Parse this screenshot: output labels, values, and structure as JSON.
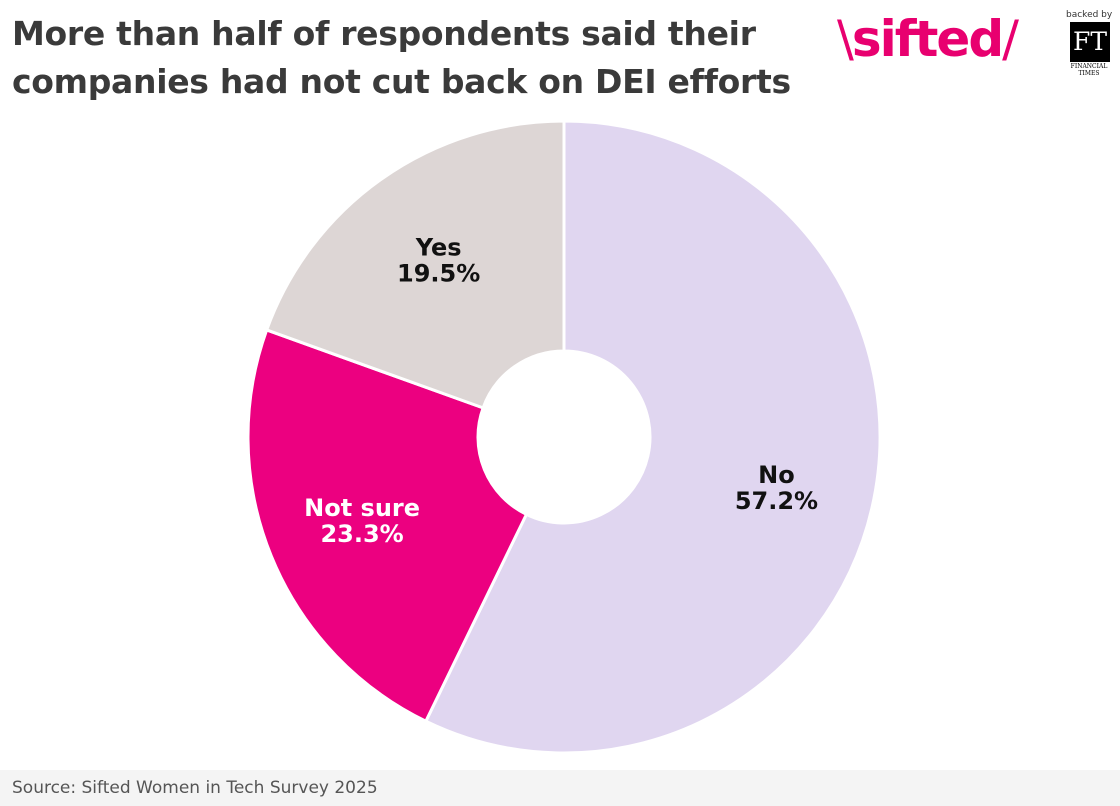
{
  "chart_data": {
    "type": "pie",
    "title": "More than half of respondents said their companies had not cut back on DEI efforts",
    "categories": [
      "No",
      "Not sure",
      "Yes"
    ],
    "values": [
      57.2,
      23.3,
      19.5
    ],
    "value_labels": [
      "57.2%",
      "23.3%",
      "19.5%"
    ],
    "colors": [
      "#e0d6f0",
      "#ec0080",
      "#ddd6d5"
    ],
    "label_colors": [
      "#111111",
      "#ffffff",
      "#111111"
    ],
    "donut": true,
    "legend": "none"
  },
  "brand": {
    "name": "sifted",
    "slash": "\\",
    "slash_end": "/",
    "backed_by": "backed by",
    "ft": "FT",
    "ft_line1": "FINANCIAL",
    "ft_line2": "TIMES"
  },
  "footer": {
    "source": "Source: Sifted Women in Tech Survey 2025"
  }
}
